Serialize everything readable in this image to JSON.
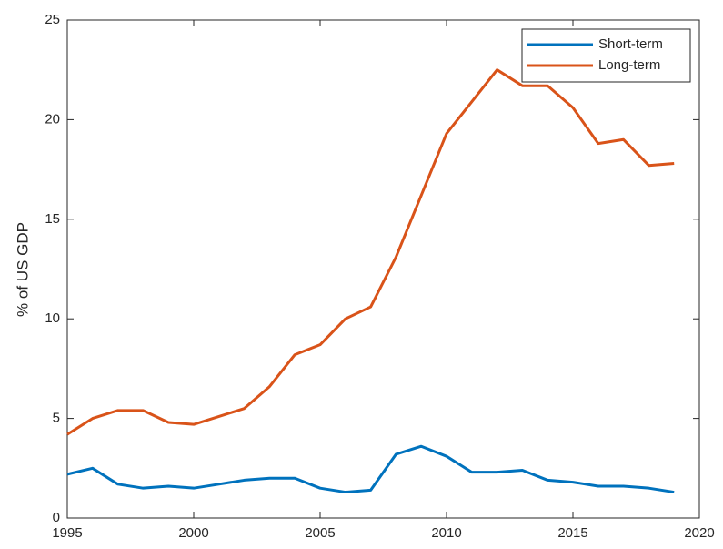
{
  "chart_data": {
    "type": "line",
    "y_label": "% of US GDP",
    "x": [
      1995,
      1996,
      1997,
      1998,
      1999,
      2000,
      2001,
      2002,
      2003,
      2004,
      2005,
      2006,
      2007,
      2008,
      2009,
      2010,
      2011,
      2012,
      2013,
      2014,
      2015,
      2016,
      2017,
      2018,
      2019
    ],
    "series": [
      {
        "name": "Short-term",
        "color": "#0072BD",
        "values": [
          2.2,
          2.5,
          1.7,
          1.5,
          1.6,
          1.5,
          1.7,
          1.9,
          2.0,
          2.0,
          1.5,
          1.3,
          1.4,
          3.2,
          3.6,
          3.1,
          2.3,
          2.3,
          2.4,
          1.9,
          1.8,
          1.6,
          1.6,
          1.5,
          1.3
        ]
      },
      {
        "name": "Long-term",
        "color": "#D95319",
        "values": [
          4.2,
          5.0,
          5.4,
          5.4,
          4.8,
          4.7,
          5.1,
          5.5,
          6.6,
          8.2,
          8.7,
          10.0,
          10.6,
          13.1,
          16.2,
          19.3,
          20.9,
          22.5,
          21.7,
          21.7,
          20.6,
          18.8,
          19.0,
          17.7,
          17.8
        ]
      }
    ],
    "xlim": [
      1995,
      2020
    ],
    "xticks": [
      1995,
      2000,
      2005,
      2010,
      2015,
      2020
    ],
    "ylim": [
      0,
      25
    ],
    "yticks": [
      0,
      5,
      10,
      15,
      20,
      25
    ],
    "grid": false,
    "legend": "northeast"
  }
}
